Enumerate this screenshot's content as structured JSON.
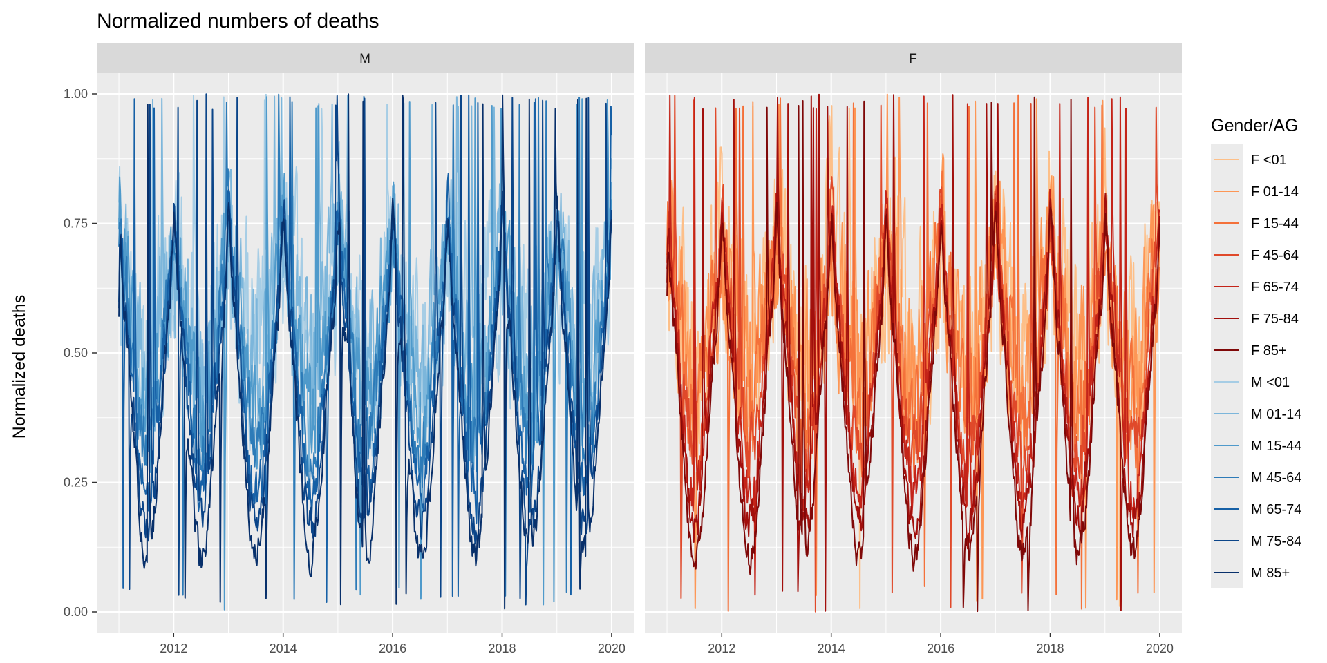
{
  "chart_data": {
    "type": "line",
    "title": "Normalized numbers of deaths",
    "xlabel": "",
    "ylabel": "Normalized deaths",
    "x_range": [
      "2011-01-01",
      "2020-01-01"
    ],
    "ylim": [
      -0.04,
      1.04
    ],
    "x_ticks": [
      "2012",
      "2014",
      "2016",
      "2018",
      "2020"
    ],
    "x_tick_years": [
      2012,
      2014,
      2016,
      2018,
      2020
    ],
    "y_ticks": [
      0.0,
      0.25,
      0.5,
      0.75,
      1.0
    ],
    "y_tick_labels": [
      "0.00",
      "0.25",
      "0.50",
      "0.75",
      "1.00"
    ],
    "grid": true,
    "facets": [
      "M",
      "F"
    ],
    "legend": {
      "title": "Gender/AG",
      "placement": "right",
      "entries": [
        {
          "label": "F <01",
          "color": "#fdbf88",
          "facet": "F",
          "age_index": 0
        },
        {
          "label": "F 01-14",
          "color": "#fd9655",
          "facet": "F",
          "age_index": 1
        },
        {
          "label": "F 15-44",
          "color": "#f4713a",
          "facet": "F",
          "age_index": 2
        },
        {
          "label": "F 45-64",
          "color": "#e0492a",
          "facet": "F",
          "age_index": 3
        },
        {
          "label": "F 65-74",
          "color": "#c42419",
          "facet": "F",
          "age_index": 4
        },
        {
          "label": "F 75-84",
          "color": "#a20f0c",
          "facet": "F",
          "age_index": 5
        },
        {
          "label": "F 85+",
          "color": "#7f0808",
          "facet": "F",
          "age_index": 6
        },
        {
          "label": "M <01",
          "color": "#a6cde5",
          "facet": "M",
          "age_index": 0
        },
        {
          "label": "M 01-14",
          "color": "#7cb6db",
          "facet": "M",
          "age_index": 1
        },
        {
          "label": "M 15-44",
          "color": "#4f9acb",
          "facet": "M",
          "age_index": 2
        },
        {
          "label": "M 45-64",
          "color": "#2d7bb8",
          "facet": "M",
          "age_index": 3
        },
        {
          "label": "M 65-74",
          "color": "#1660a6",
          "facet": "M",
          "age_index": 4
        },
        {
          "label": "M 75-84",
          "color": "#0b4589",
          "facet": "M",
          "age_index": 5
        },
        {
          "label": "M 85+",
          "color": "#08306b",
          "facet": "M",
          "age_index": 6
        }
      ]
    },
    "series_note_levels": {
      "baseline": [
        0.58,
        0.55,
        0.52,
        0.48,
        0.44,
        0.4,
        0.36
      ],
      "amplitude": [
        0.1,
        0.12,
        0.16,
        0.2,
        0.24,
        0.26,
        0.28
      ],
      "noise": [
        0.3,
        0.24,
        0.17,
        0.11,
        0.08,
        0.06,
        0.05
      ]
    }
  },
  "colors": {
    "panel_bg": "#ebebeb",
    "strip_bg": "#d9d9d9",
    "grid_major": "#ffffff",
    "tick": "#333333"
  }
}
